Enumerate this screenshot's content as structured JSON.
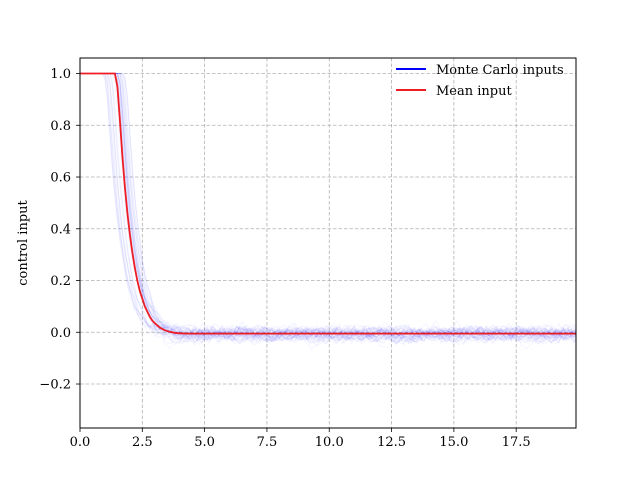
{
  "chart_data": {
    "type": "line",
    "title": "",
    "xlabel": "",
    "ylabel": "control input",
    "xlim": [
      0,
      19.9
    ],
    "ylim": [
      -0.37,
      1.06
    ],
    "xticks": [
      0.0,
      2.5,
      5.0,
      7.5,
      10.0,
      12.5,
      15.0,
      17.5
    ],
    "xtick_labels": [
      "0.0",
      "2.5",
      "5.0",
      "7.5",
      "10.0",
      "12.5",
      "15.0",
      "17.5"
    ],
    "yticks": [
      1.0,
      0.8,
      0.6,
      0.4,
      0.2,
      0.0,
      -0.2
    ],
    "ytick_labels": [
      "1.0",
      "0.8",
      "0.6",
      "0.4",
      "0.2",
      "0.0",
      "−0.2"
    ],
    "grid": true,
    "grid_style": "dashed",
    "legend": {
      "location": "top-right",
      "entries": [
        {
          "label": "Monte Carlo inputs",
          "color": "#0000ff"
        },
        {
          "label": "Mean input",
          "color": "#ee1c25"
        }
      ]
    },
    "series": [
      {
        "name": "Mean input",
        "color": "#ee1c25",
        "x": [
          0.0,
          1.4,
          1.5,
          1.6,
          1.7,
          1.8,
          1.9,
          2.0,
          2.1,
          2.2,
          2.3,
          2.4,
          2.5,
          2.6,
          2.7,
          2.8,
          2.9,
          3.0,
          3.2,
          3.4,
          3.6,
          3.8,
          4.0,
          4.3,
          4.6,
          5.0,
          6.0,
          8.0,
          10.0,
          12.0,
          14.0,
          16.0,
          18.0,
          19.9
        ],
        "y": [
          1.0,
          1.0,
          0.95,
          0.82,
          0.68,
          0.56,
          0.46,
          0.38,
          0.31,
          0.25,
          0.2,
          0.16,
          0.13,
          0.1,
          0.08,
          0.06,
          0.045,
          0.035,
          0.018,
          0.008,
          0.002,
          -0.002,
          -0.004,
          -0.005,
          -0.005,
          -0.005,
          -0.005,
          -0.005,
          -0.005,
          -0.005,
          -0.005,
          -0.005,
          -0.005,
          -0.005
        ]
      }
    ],
    "monte_carlo": {
      "name": "Monte Carlo inputs",
      "color": "#0000ff",
      "trajectories": 40,
      "noise_std": 0.05
    }
  }
}
